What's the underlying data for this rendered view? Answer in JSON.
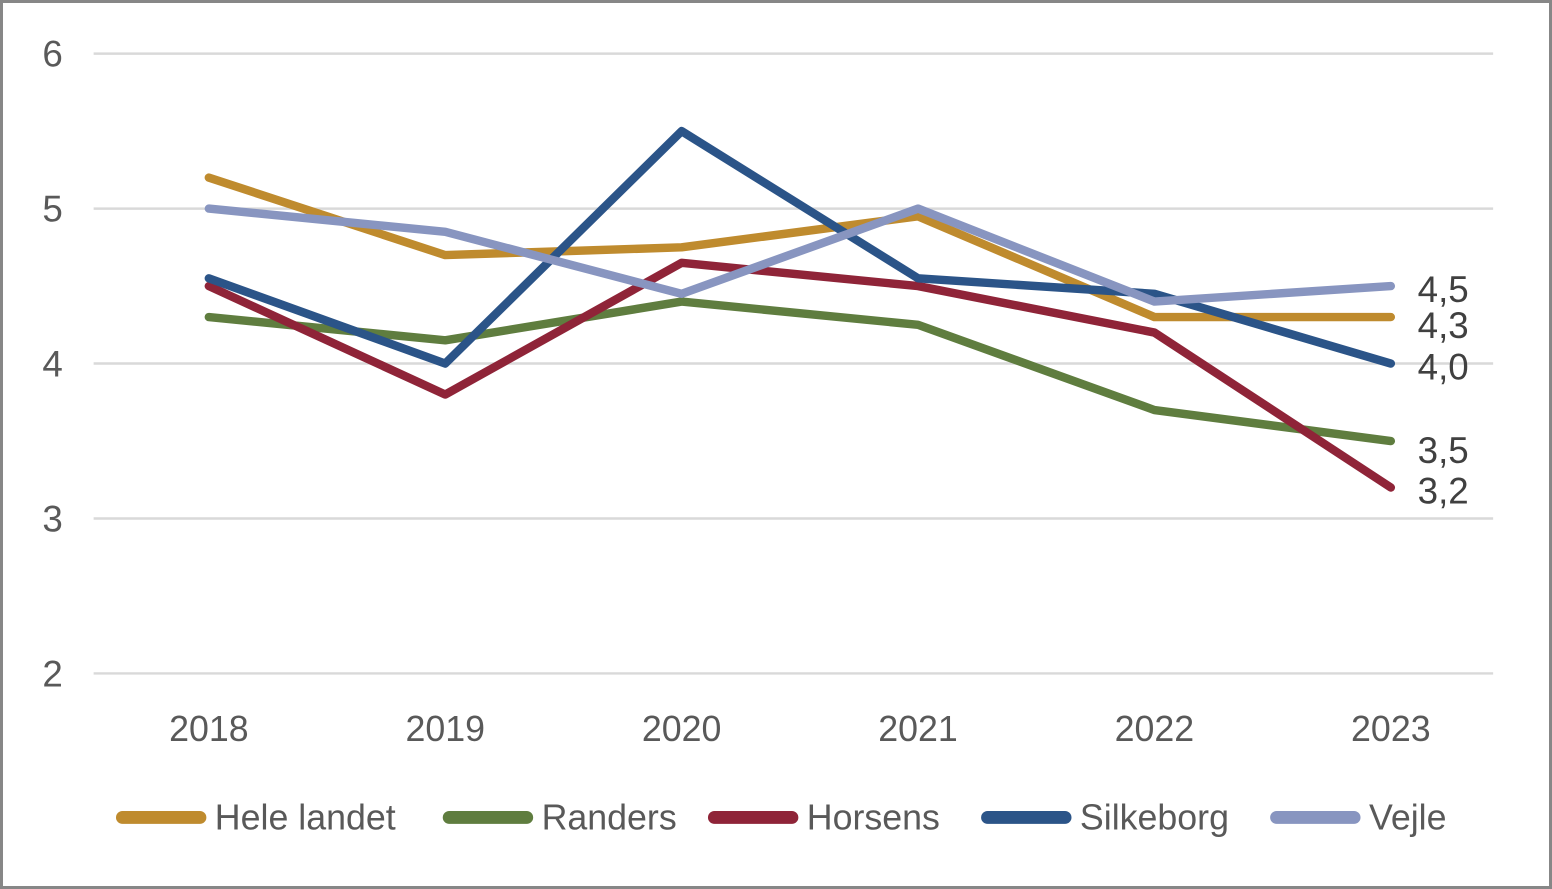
{
  "chart_data": {
    "type": "line",
    "title": "",
    "xlabel": "",
    "ylabel": "",
    "x": [
      "2018",
      "2019",
      "2020",
      "2021",
      "2022",
      "2023"
    ],
    "series": [
      {
        "name": "Hele landet",
        "color": "#BF8B2E",
        "values": [
          5.2,
          4.7,
          4.75,
          4.95,
          4.3,
          4.3
        ],
        "end_label": "4,3"
      },
      {
        "name": "Randers",
        "color": "#5F7D3F",
        "values": [
          4.3,
          4.15,
          4.4,
          4.25,
          3.7,
          3.5
        ],
        "end_label": "3,5"
      },
      {
        "name": "Horsens",
        "color": "#8F2438",
        "values": [
          4.5,
          3.8,
          4.65,
          4.5,
          4.2,
          3.2
        ],
        "end_label": "3,2"
      },
      {
        "name": "Silkeborg",
        "color": "#2B5488",
        "values": [
          4.55,
          4.0,
          5.5,
          4.55,
          4.45,
          4.0
        ],
        "end_label": "4,0"
      },
      {
        "name": "Vejle",
        "color": "#8895C0",
        "values": [
          5.0,
          4.85,
          4.45,
          5.0,
          4.4,
          4.5
        ],
        "end_label": "4,5"
      }
    ],
    "y_axis": {
      "min": 2,
      "max": 6,
      "ticks": [
        6,
        5,
        4,
        3,
        2
      ]
    },
    "grid": true,
    "legend_position": "bottom",
    "colors": {
      "gridline": "#D9D9D9",
      "tick_text": "#595959",
      "end_label_text": "#404040",
      "legend_text": "#595959",
      "frame_border": "#878787",
      "background": "#FFFFFF"
    }
  }
}
